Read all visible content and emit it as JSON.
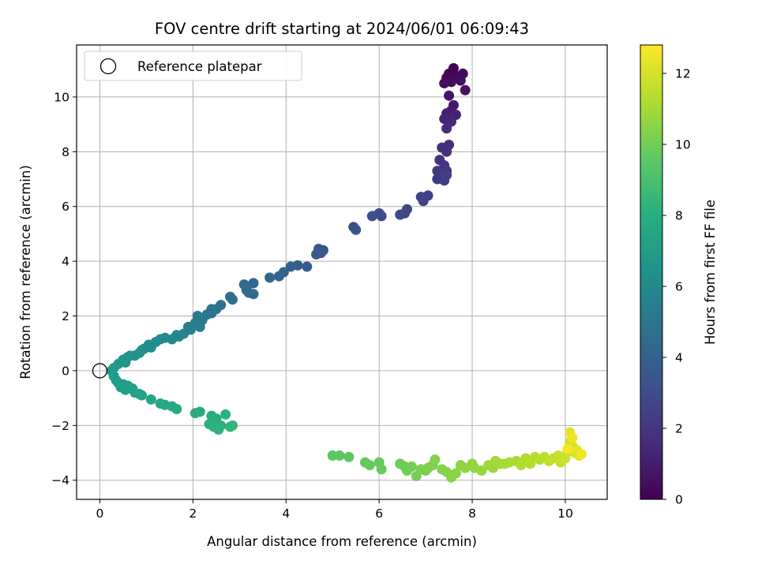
{
  "chart_data": {
    "type": "scatter",
    "title": "FOV centre drift starting at 2024/06/01 06:09:43",
    "xlabel": "Angular distance from reference (arcmin)",
    "ylabel": "Rotation from reference (arcmin)",
    "xlim": [
      -0.5,
      10.9
    ],
    "ylim": [
      -4.7,
      11.9
    ],
    "x_ticks": [
      0,
      2,
      4,
      6,
      8,
      10
    ],
    "y_ticks": [
      -4,
      -2,
      0,
      2,
      4,
      6,
      8,
      10
    ],
    "grid": true,
    "legend": {
      "placement": "top-left",
      "entries": [
        "Reference platepar"
      ]
    },
    "reference_point": {
      "name": "Reference platepar",
      "x": 0,
      "y": 0
    },
    "colorbar": {
      "label": "Hours from first FF file",
      "range": [
        0,
        12.8
      ],
      "ticks": [
        0,
        2,
        4,
        6,
        8,
        10,
        12
      ],
      "colormap": "viridis"
    },
    "points": [
      [
        7.6,
        11.05,
        0.0
      ],
      [
        7.5,
        10.85,
        0.1
      ],
      [
        7.7,
        10.75,
        0.2
      ],
      [
        7.45,
        10.7,
        0.25
      ],
      [
        7.8,
        10.85,
        0.3
      ],
      [
        7.55,
        10.55,
        0.4
      ],
      [
        7.4,
        10.5,
        0.45
      ],
      [
        7.75,
        10.6,
        0.5
      ],
      [
        7.85,
        10.25,
        0.6
      ],
      [
        7.5,
        10.05,
        0.7
      ],
      [
        7.6,
        9.7,
        0.9
      ],
      [
        7.55,
        9.5,
        1.0
      ],
      [
        7.45,
        9.4,
        1.1
      ],
      [
        7.65,
        9.35,
        1.2
      ],
      [
        7.4,
        9.2,
        1.3
      ],
      [
        7.55,
        9.1,
        1.4
      ],
      [
        7.45,
        8.85,
        1.5
      ],
      [
        7.5,
        8.25,
        1.6
      ],
      [
        7.35,
        8.15,
        1.7
      ],
      [
        7.45,
        8.0,
        1.8
      ],
      [
        7.3,
        7.7,
        1.9
      ],
      [
        7.4,
        7.5,
        2.0
      ],
      [
        7.45,
        7.3,
        2.1
      ],
      [
        7.25,
        7.3,
        2.15
      ],
      [
        7.35,
        7.1,
        2.2
      ],
      [
        7.25,
        7.0,
        2.25
      ],
      [
        7.4,
        6.95,
        2.3
      ],
      [
        7.45,
        7.15,
        2.35
      ],
      [
        7.05,
        6.4,
        2.45
      ],
      [
        6.9,
        6.35,
        2.5
      ],
      [
        6.95,
        6.2,
        2.6
      ],
      [
        6.6,
        5.9,
        2.7
      ],
      [
        6.55,
        5.75,
        2.8
      ],
      [
        6.45,
        5.7,
        2.9
      ],
      [
        6.0,
        5.75,
        3.0
      ],
      [
        6.05,
        5.65,
        3.05
      ],
      [
        5.85,
        5.65,
        3.1
      ],
      [
        5.45,
        5.25,
        3.2
      ],
      [
        5.5,
        5.15,
        3.3
      ],
      [
        4.8,
        4.4,
        3.45
      ],
      [
        4.75,
        4.3,
        3.5
      ],
      [
        4.7,
        4.45,
        3.55
      ],
      [
        4.65,
        4.25,
        3.6
      ],
      [
        4.45,
        3.8,
        3.7
      ],
      [
        4.25,
        3.85,
        3.8
      ],
      [
        4.1,
        3.8,
        3.9
      ],
      [
        3.95,
        3.6,
        4.0
      ],
      [
        3.85,
        3.45,
        4.1
      ],
      [
        3.65,
        3.4,
        4.2
      ],
      [
        3.3,
        3.2,
        4.3
      ],
      [
        3.15,
        2.95,
        4.4
      ],
      [
        3.1,
        3.15,
        4.45
      ],
      [
        3.2,
        2.85,
        4.5
      ],
      [
        3.3,
        2.8,
        4.55
      ],
      [
        2.85,
        2.6,
        4.6
      ],
      [
        2.8,
        2.7,
        4.7
      ],
      [
        2.6,
        2.4,
        4.8
      ],
      [
        2.5,
        2.25,
        4.9
      ],
      [
        2.4,
        2.1,
        4.95
      ],
      [
        2.4,
        2.25,
        5.0
      ],
      [
        2.2,
        1.9,
        5.05
      ],
      [
        2.3,
        2.05,
        5.1
      ],
      [
        2.1,
        2.0,
        5.2
      ],
      [
        2.2,
        1.85,
        5.25
      ],
      [
        2.05,
        1.75,
        5.3
      ],
      [
        2.15,
        1.6,
        5.4
      ],
      [
        1.9,
        1.6,
        5.5
      ],
      [
        1.95,
        1.5,
        5.6
      ],
      [
        1.7,
        1.25,
        5.7
      ],
      [
        1.8,
        1.35,
        5.75
      ],
      [
        1.65,
        1.3,
        5.8
      ],
      [
        1.55,
        1.15,
        5.9
      ],
      [
        1.4,
        1.2,
        6.0
      ],
      [
        1.3,
        1.15,
        6.05
      ],
      [
        1.2,
        1.05,
        6.1
      ],
      [
        1.05,
        0.95,
        6.2
      ],
      [
        1.1,
        0.85,
        6.25
      ],
      [
        0.95,
        0.8,
        6.3
      ],
      [
        0.9,
        0.75,
        6.4
      ],
      [
        0.85,
        0.65,
        6.45
      ],
      [
        0.75,
        0.55,
        6.5
      ],
      [
        0.65,
        0.55,
        6.55
      ],
      [
        0.6,
        0.5,
        6.6
      ],
      [
        0.5,
        0.4,
        6.65
      ],
      [
        0.55,
        0.3,
        6.7
      ],
      [
        0.4,
        0.25,
        6.75
      ],
      [
        0.3,
        0.1,
        6.8
      ],
      [
        0.25,
        0.0,
        6.85
      ],
      [
        0.3,
        -0.2,
        6.9
      ],
      [
        0.35,
        -0.35,
        6.95
      ],
      [
        0.4,
        -0.45,
        7.0
      ],
      [
        0.45,
        -0.6,
        7.05
      ],
      [
        0.5,
        -0.5,
        7.1
      ],
      [
        0.55,
        -0.7,
        7.15
      ],
      [
        0.6,
        -0.55,
        7.2
      ],
      [
        0.7,
        -0.65,
        7.25
      ],
      [
        0.75,
        -0.8,
        7.3
      ],
      [
        0.85,
        -0.85,
        7.35
      ],
      [
        0.9,
        -0.9,
        7.4
      ],
      [
        1.1,
        -1.05,
        7.5
      ],
      [
        1.3,
        -1.2,
        7.55
      ],
      [
        1.4,
        -1.25,
        7.6
      ],
      [
        1.55,
        -1.3,
        7.65
      ],
      [
        1.65,
        -1.4,
        7.7
      ],
      [
        2.05,
        -1.55,
        7.8
      ],
      [
        2.15,
        -1.5,
        7.85
      ],
      [
        2.4,
        -1.65,
        7.9
      ],
      [
        2.5,
        -1.75,
        7.95
      ],
      [
        2.35,
        -1.95,
        8.0
      ],
      [
        2.45,
        -2.05,
        8.05
      ],
      [
        2.6,
        -2.0,
        8.1
      ],
      [
        2.7,
        -1.6,
        8.15
      ],
      [
        2.55,
        -2.15,
        8.2
      ],
      [
        2.85,
        -2.0,
        8.3
      ],
      [
        2.8,
        -2.05,
        8.35
      ],
      [
        5.0,
        -3.1,
        9.5
      ],
      [
        5.15,
        -3.1,
        9.55
      ],
      [
        5.35,
        -3.15,
        9.6
      ],
      [
        5.7,
        -3.35,
        9.7
      ],
      [
        5.8,
        -3.45,
        9.75
      ],
      [
        6.0,
        -3.35,
        9.8
      ],
      [
        6.05,
        -3.6,
        9.85
      ],
      [
        6.45,
        -3.4,
        9.9
      ],
      [
        6.55,
        -3.5,
        9.95
      ],
      [
        6.6,
        -3.65,
        10.0
      ],
      [
        6.7,
        -3.5,
        10.05
      ],
      [
        6.8,
        -3.85,
        10.1
      ],
      [
        6.9,
        -3.6,
        10.15
      ],
      [
        7.0,
        -3.65,
        10.2
      ],
      [
        7.05,
        -3.55,
        10.25
      ],
      [
        7.15,
        -3.45,
        10.3
      ],
      [
        7.2,
        -3.25,
        10.35
      ],
      [
        7.35,
        -3.6,
        10.4
      ],
      [
        7.45,
        -3.7,
        10.45
      ],
      [
        7.55,
        -3.9,
        10.5
      ],
      [
        7.65,
        -3.75,
        10.55
      ],
      [
        7.75,
        -3.45,
        10.6
      ],
      [
        7.85,
        -3.55,
        10.65
      ],
      [
        8.0,
        -3.4,
        10.7
      ],
      [
        8.05,
        -3.55,
        10.75
      ],
      [
        8.2,
        -3.65,
        10.8
      ],
      [
        8.35,
        -3.45,
        10.85
      ],
      [
        8.45,
        -3.55,
        10.9
      ],
      [
        8.5,
        -3.3,
        10.95
      ],
      [
        8.6,
        -3.4,
        11.0
      ],
      [
        8.7,
        -3.4,
        11.1
      ],
      [
        8.8,
        -3.35,
        11.15
      ],
      [
        8.95,
        -3.3,
        11.2
      ],
      [
        9.05,
        -3.45,
        11.25
      ],
      [
        9.15,
        -3.2,
        11.3
      ],
      [
        9.25,
        -3.4,
        11.35
      ],
      [
        9.35,
        -3.15,
        11.4
      ],
      [
        9.45,
        -3.25,
        11.45
      ],
      [
        9.55,
        -3.15,
        11.5
      ],
      [
        9.65,
        -3.3,
        11.55
      ],
      [
        9.75,
        -3.2,
        11.6
      ],
      [
        9.85,
        -3.1,
        11.7
      ],
      [
        9.9,
        -3.35,
        11.75
      ],
      [
        10.0,
        -3.2,
        11.8
      ],
      [
        10.05,
        -2.95,
        11.85
      ],
      [
        10.1,
        -2.6,
        11.9
      ],
      [
        10.15,
        -2.75,
        11.95
      ],
      [
        10.2,
        -3.0,
        12.05
      ],
      [
        10.3,
        -3.1,
        12.2
      ],
      [
        10.1,
        -2.25,
        12.3
      ],
      [
        10.25,
        -2.9,
        12.4
      ],
      [
        10.15,
        -2.45,
        12.5
      ],
      [
        10.35,
        -3.05,
        12.6
      ],
      [
        10.05,
        -2.85,
        12.7
      ]
    ]
  },
  "colors": {
    "grid": "#b0b0b0",
    "axes": "#000000"
  }
}
